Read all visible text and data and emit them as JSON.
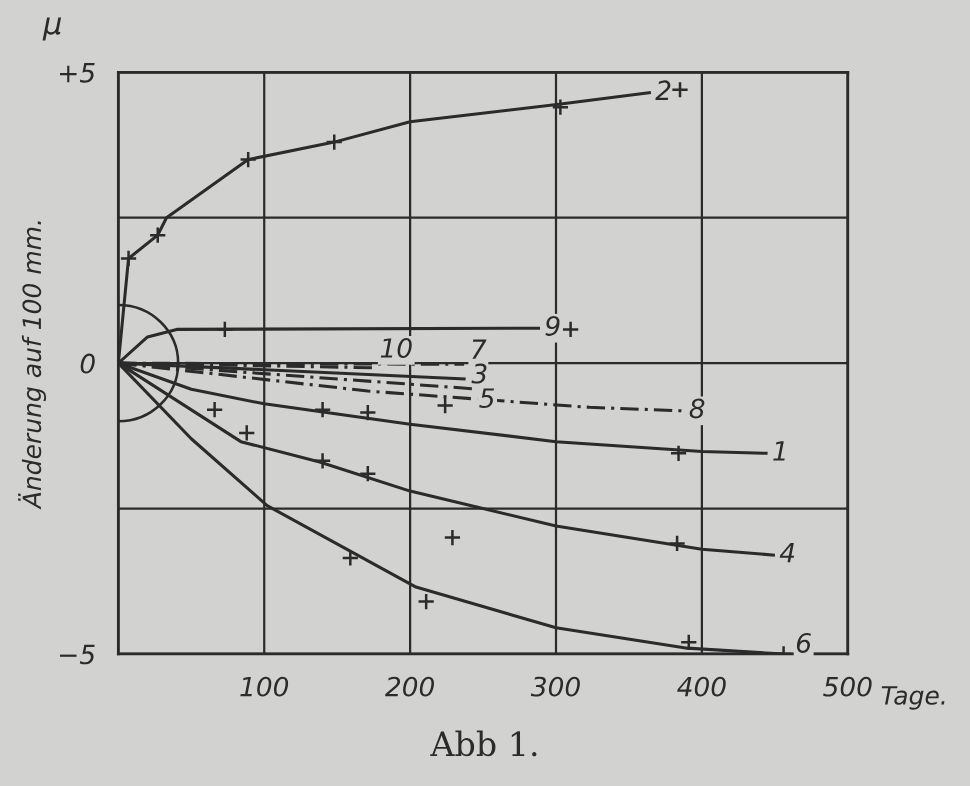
{
  "chart_data": {
    "type": "line",
    "xlabel": "Tage.",
    "ylabel": "Änderung auf 100 mm.",
    "annotations": [
      "μ",
      "Abb 1."
    ],
    "xlim": [
      0,
      500
    ],
    "xticks": [
      {
        "value": 0,
        "label": null
      },
      100,
      200,
      300,
      400,
      500
    ],
    "ylim": [
      -5,
      5
    ],
    "yticks": [
      {
        "value": -5,
        "label": "−5"
      },
      {
        "value": -2.5,
        "label": null
      },
      0,
      {
        "value": 2.5,
        "label": null
      },
      {
        "value": 5,
        "label": "+5"
      }
    ],
    "grid": true,
    "marker": "none",
    "series": [
      {
        "name": "2",
        "color": "#2b2b2b",
        "line_style": "solid",
        "x": [
          0,
          7,
          27,
          33,
          89,
          148,
          200,
          302,
          364
        ],
        "values": [
          0,
          1.8,
          2.2,
          2.5,
          3.5,
          3.8,
          4.15,
          4.45,
          4.65
        ]
      },
      {
        "name": "9",
        "color": "#2b2b2b",
        "line_style": "solid",
        "x": [
          0,
          20,
          40,
          288
        ],
        "values": [
          0,
          0.45,
          0.58,
          0.6
        ]
      },
      {
        "name": "10",
        "color": "#2b2b2b",
        "line_style": "dashed",
        "x": [
          0,
          175
        ],
        "values": [
          0,
          -0.08
        ]
      },
      {
        "name": "7",
        "color": "#2b2b2b",
        "line_style": "dashed",
        "x": [
          0,
          237
        ],
        "values": [
          0,
          -0.02
        ]
      },
      {
        "name": "3",
        "color": "#2b2b2b",
        "line_style": "solid",
        "x": [
          0,
          237
        ],
        "values": [
          0,
          -0.27
        ]
      },
      {
        "name": "5",
        "color": "#2b2b2b",
        "line_style": "dashed",
        "x": [
          0,
          243
        ],
        "values": [
          0,
          -0.44
        ]
      },
      {
        "name": "8",
        "color": "#2b2b2b",
        "line_style": "dashed",
        "x": [
          0,
          171,
          323,
          387
        ],
        "values": [
          0,
          -0.48,
          -0.76,
          -0.82
        ]
      },
      {
        "name": "1",
        "color": "#2b2b2b",
        "line_style": "solid",
        "x": [
          0,
          50,
          100,
          200,
          300,
          400,
          444
        ],
        "values": [
          0,
          -0.45,
          -0.7,
          -1.05,
          -1.35,
          -1.52,
          -1.55
        ]
      },
      {
        "name": "4",
        "color": "#2b2b2b",
        "line_style": "solid",
        "x": [
          0,
          84,
          138,
          200,
          300,
          400,
          449
        ],
        "values": [
          0,
          -1.35,
          -1.7,
          -2.2,
          -2.8,
          -3.2,
          -3.3
        ]
      },
      {
        "name": "6",
        "color": "#2b2b2b",
        "line_style": "solid",
        "x": [
          0,
          50,
          102,
          204,
          300,
          390,
          455
        ],
        "values": [
          0,
          -1.3,
          -2.45,
          -3.85,
          -4.55,
          -4.9,
          -5.0
        ]
      },
      {
        "type": "scatter",
        "marker": "cross",
        "color": "#2b2b2b",
        "x": [
          7,
          27,
          89,
          148,
          303,
          385,
          73,
          310,
          140,
          171,
          224,
          384,
          88,
          140,
          171,
          229,
          383,
          66,
          159,
          211,
          391,
          456
        ],
        "values": [
          1.8,
          2.2,
          3.5,
          3.8,
          4.4,
          4.7,
          0.58,
          0.58,
          -0.8,
          -0.85,
          -0.73,
          -1.55,
          -1.2,
          -1.68,
          -1.9,
          -3.0,
          -3.1,
          -0.8,
          -3.35,
          -4.1,
          -4.8,
          -5.0
        ]
      }
    ]
  }
}
